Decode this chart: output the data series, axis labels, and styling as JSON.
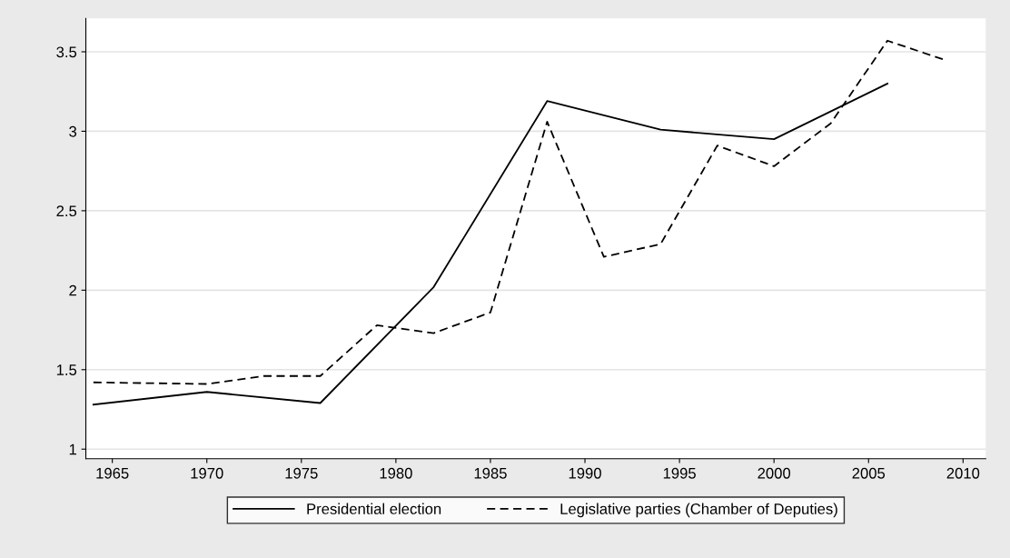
{
  "chart_data": {
    "type": "line",
    "x": [
      1964,
      1970,
      1976,
      1982,
      1988,
      1994,
      2000,
      2006
    ],
    "series": [
      {
        "name": "Presidential election",
        "color": "#000000",
        "line_style": "solid",
        "values": [
          1.28,
          1.36,
          1.29,
          2.02,
          3.19,
          3.01,
          2.95,
          3.3
        ]
      },
      {
        "name": "Legislative parties (Chamber of Deputies)",
        "color": "#000000",
        "line_style": "dashed",
        "x": [
          1964,
          1970,
          1973,
          1976,
          1979,
          1982,
          1985,
          1988,
          1991,
          1994,
          1997,
          2000,
          2003,
          2006,
          2009
        ],
        "values": [
          1.42,
          1.41,
          1.46,
          1.46,
          1.78,
          1.73,
          1.86,
          3.06,
          2.21,
          2.29,
          2.91,
          2.78,
          3.05,
          3.57,
          3.45
        ]
      }
    ],
    "xlim": [
      1963.6,
      2011.2
    ],
    "xticks": [
      1965,
      1970,
      1975,
      1980,
      1985,
      1990,
      1995,
      2000,
      2005,
      2010
    ],
    "ylim": [
      0.94,
      3.71
    ],
    "yticks": [
      1,
      1.5,
      2,
      2.5,
      3,
      3.5
    ],
    "grid": "y",
    "legend": "bottom",
    "marker": "none"
  }
}
